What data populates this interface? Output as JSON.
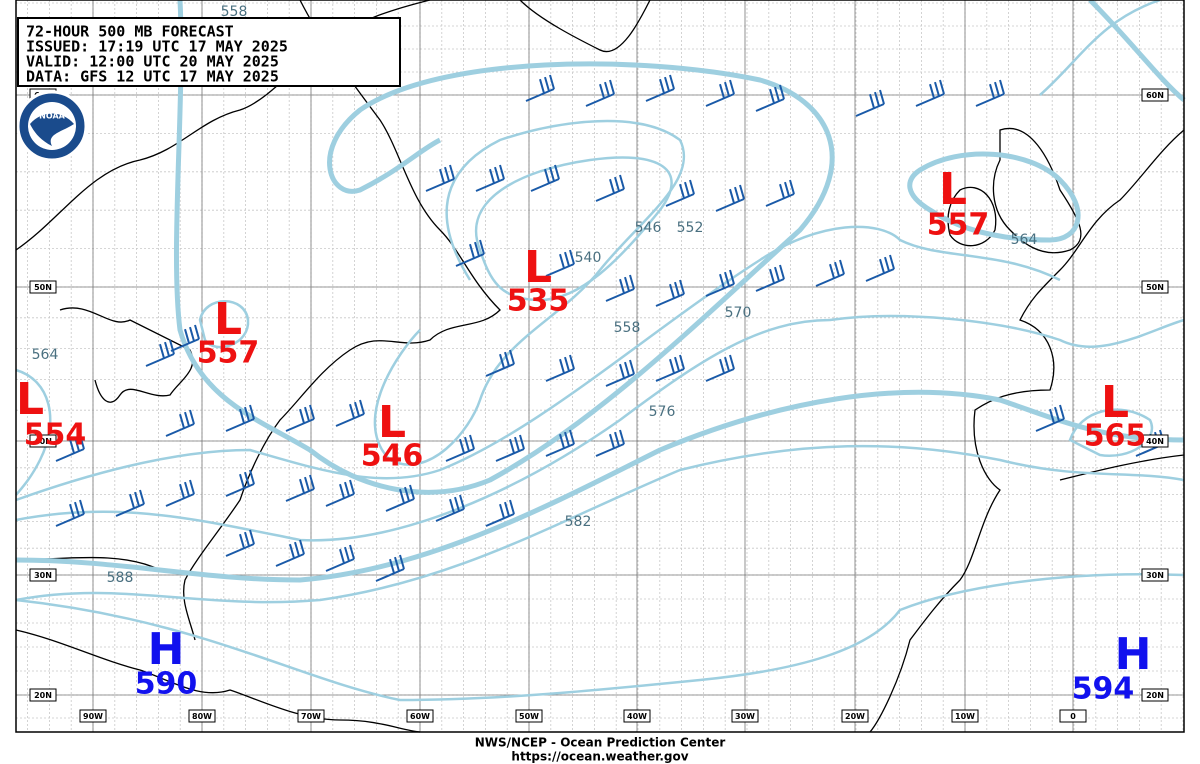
{
  "header": {
    "lines": [
      "72-HOUR 500 MB FORECAST",
      "ISSUED: 17:19 UTC 17 MAY 2025",
      "VALID:  12:00 UTC 20 MAY 2025",
      "DATA:   GFS 12 UTC 17 MAY 2025"
    ]
  },
  "logo": "NOAA",
  "systems": [
    {
      "type": "L",
      "value": "557"
    },
    {
      "type": "L",
      "value": "554"
    },
    {
      "type": "L",
      "value": "546"
    },
    {
      "type": "L",
      "value": "535"
    },
    {
      "type": "L",
      "value": "557"
    },
    {
      "type": "L",
      "value": "565"
    },
    {
      "type": "H",
      "value": "590"
    },
    {
      "type": "H",
      "value": "594"
    }
  ],
  "contour_labels": [
    "558",
    "564",
    "540",
    "546",
    "552",
    "558",
    "570",
    "576",
    "582",
    "588",
    "564"
  ],
  "lat_labels": [
    "60N",
    "50N",
    "40N",
    "30N",
    "20N"
  ],
  "lon_labels": [
    "90W",
    "80W",
    "70W",
    "60W",
    "50W",
    "40W",
    "30W",
    "20W",
    "10W",
    "0"
  ],
  "footer": {
    "agency": "NWS/NCEP - Ocean Prediction Center",
    "url": "https://ocean.weather.gov"
  }
}
